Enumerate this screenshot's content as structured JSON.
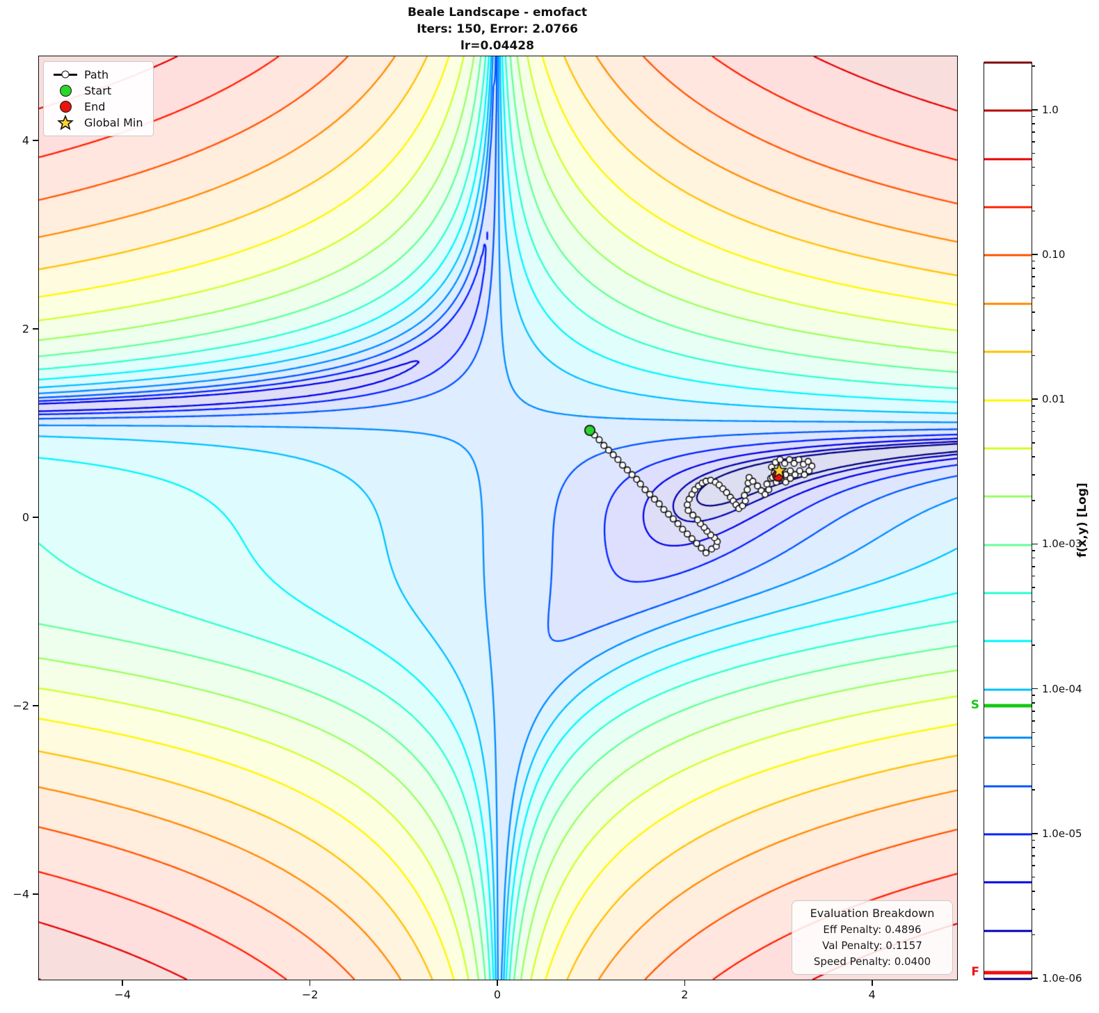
{
  "title": {
    "line1": "Beale Landscape - emofact",
    "line2": "Iters: 150, Error: 2.0766",
    "line3": "lr=0.04428"
  },
  "legend": {
    "items": [
      {
        "marker": "path",
        "label": "Path"
      },
      {
        "marker": "start",
        "label": "Start"
      },
      {
        "marker": "end",
        "label": "End"
      },
      {
        "marker": "star",
        "label": "Global Min"
      }
    ]
  },
  "evaluation": {
    "title": "Evaluation Breakdown",
    "rows": [
      "Eff Penalty: 0.4896",
      "Val Penalty: 0.1157",
      "Speed Penalty: 0.0400"
    ]
  },
  "colors": {
    "start_marker": "#2bd62b",
    "end_marker": "#e81410",
    "star_fill": "#ffd22e",
    "path_line": "#111111",
    "path_marker_fill": "#ffffff",
    "marker_edge": "#111111"
  },
  "chart_data": {
    "type": "contour",
    "function": "beale",
    "formula": "(1.5 - x + x*y)^2 + (2.25 - x + x*y^2)^2 + (2.625 - x + x*y^3)^2",
    "xlim": [
      -4.9,
      4.9
    ],
    "ylim": [
      -4.9,
      4.9
    ],
    "x_ticks": [
      {
        "label": "−4",
        "value": -4
      },
      {
        "label": "−2",
        "value": -2
      },
      {
        "label": "0",
        "value": 0
      },
      {
        "label": "2",
        "value": 2
      },
      {
        "label": "4",
        "value": 4
      }
    ],
    "y_ticks": [
      {
        "label": "4",
        "value": 4
      },
      {
        "label": "2",
        "value": 2
      },
      {
        "label": "0",
        "value": 0
      },
      {
        "label": "−2",
        "value": -2
      },
      {
        "label": "−4",
        "value": -4
      }
    ],
    "levels": {
      "count": 20,
      "log10_min": -6,
      "log10_max": 0.33,
      "scale": "log",
      "normalized_by": "grid max"
    },
    "colormap": "jet",
    "fill_alpha": 0.13,
    "grid_on": false,
    "legend_position": "upper left",
    "start": [
      0.98,
      0.93
    ],
    "end": [
      2.99,
      0.45
    ],
    "global_min": [
      3.0,
      0.5
    ],
    "path": [
      [
        0.98,
        0.93
      ],
      [
        1.03,
        0.88
      ],
      [
        1.08,
        0.83
      ],
      [
        1.13,
        0.77
      ],
      [
        1.18,
        0.72
      ],
      [
        1.23,
        0.67
      ],
      [
        1.28,
        0.62
      ],
      [
        1.33,
        0.56
      ],
      [
        1.38,
        0.51
      ],
      [
        1.43,
        0.46
      ],
      [
        1.48,
        0.41
      ],
      [
        1.52,
        0.36
      ],
      [
        1.57,
        0.3
      ],
      [
        1.62,
        0.25
      ],
      [
        1.67,
        0.2
      ],
      [
        1.72,
        0.15
      ],
      [
        1.77,
        0.09
      ],
      [
        1.82,
        0.04
      ],
      [
        1.87,
        -0.01
      ],
      [
        1.92,
        -0.06
      ],
      [
        1.97,
        -0.12
      ],
      [
        2.02,
        -0.17
      ],
      [
        2.07,
        -0.22
      ],
      [
        2.12,
        -0.27
      ],
      [
        2.17,
        -0.32
      ],
      [
        2.22,
        -0.37
      ],
      [
        2.28,
        -0.33
      ],
      [
        2.33,
        -0.3
      ],
      [
        2.34,
        -0.25
      ],
      [
        2.31,
        -0.21
      ],
      [
        2.27,
        -0.18
      ],
      [
        2.23,
        -0.14
      ],
      [
        2.2,
        -0.1
      ],
      [
        2.16,
        -0.06
      ],
      [
        2.13,
        -0.02
      ],
      [
        2.08,
        0.03
      ],
      [
        2.03,
        0.08
      ],
      [
        2.02,
        0.14
      ],
      [
        2.04,
        0.2
      ],
      [
        2.07,
        0.25
      ],
      [
        2.1,
        0.3
      ],
      [
        2.14,
        0.34
      ],
      [
        2.18,
        0.37
      ],
      [
        2.22,
        0.39
      ],
      [
        2.27,
        0.4
      ],
      [
        2.32,
        0.38
      ],
      [
        2.36,
        0.35
      ],
      [
        2.4,
        0.31
      ],
      [
        2.44,
        0.27
      ],
      [
        2.48,
        0.22
      ],
      [
        2.51,
        0.18
      ],
      [
        2.54,
        0.14
      ],
      [
        2.57,
        0.1
      ],
      [
        2.61,
        0.13
      ],
      [
        2.64,
        0.18
      ],
      [
        2.63,
        0.24
      ],
      [
        2.66,
        0.3
      ],
      [
        2.67,
        0.37
      ],
      [
        2.68,
        0.43
      ],
      [
        2.72,
        0.39
      ],
      [
        2.77,
        0.34
      ],
      [
        2.81,
        0.29
      ],
      [
        2.85,
        0.25
      ],
      [
        2.89,
        0.3
      ],
      [
        2.87,
        0.36
      ],
      [
        2.91,
        0.42
      ],
      [
        2.95,
        0.48
      ],
      [
        2.92,
        0.54
      ],
      [
        2.96,
        0.59
      ],
      [
        3.01,
        0.62
      ],
      [
        3.06,
        0.58
      ],
      [
        3.11,
        0.62
      ],
      [
        3.16,
        0.58
      ],
      [
        3.21,
        0.62
      ],
      [
        3.26,
        0.57
      ],
      [
        3.31,
        0.6
      ],
      [
        3.35,
        0.55
      ],
      [
        3.32,
        0.5
      ],
      [
        3.27,
        0.46
      ],
      [
        3.22,
        0.5
      ],
      [
        3.17,
        0.46
      ],
      [
        3.12,
        0.5
      ],
      [
        3.07,
        0.46
      ],
      [
        3.12,
        0.42
      ],
      [
        3.07,
        0.38
      ],
      [
        3.02,
        0.42
      ],
      [
        2.97,
        0.38
      ],
      [
        2.93,
        0.43
      ],
      [
        2.99,
        0.45
      ]
    ],
    "colorbar": {
      "label": "f(x,y) [Log]",
      "ticks": [
        {
          "label": "1.0",
          "value": 1.0
        },
        {
          "label": "0.10",
          "value": 0.1
        },
        {
          "label": "0.01",
          "value": 0.01
        },
        {
          "label": "1.0e-03",
          "value": 0.001
        },
        {
          "label": "1.0e-04",
          "value": 0.0001
        },
        {
          "label": "1.0e-05",
          "value": 1e-05
        },
        {
          "label": "1.0e-06",
          "value": 1e-06
        }
      ],
      "markers": [
        {
          "label": "S",
          "value": 7.7e-05,
          "color": "#15c915"
        },
        {
          "label": "F",
          "value": 1.1e-06,
          "color": "#ee1111"
        }
      ]
    }
  }
}
